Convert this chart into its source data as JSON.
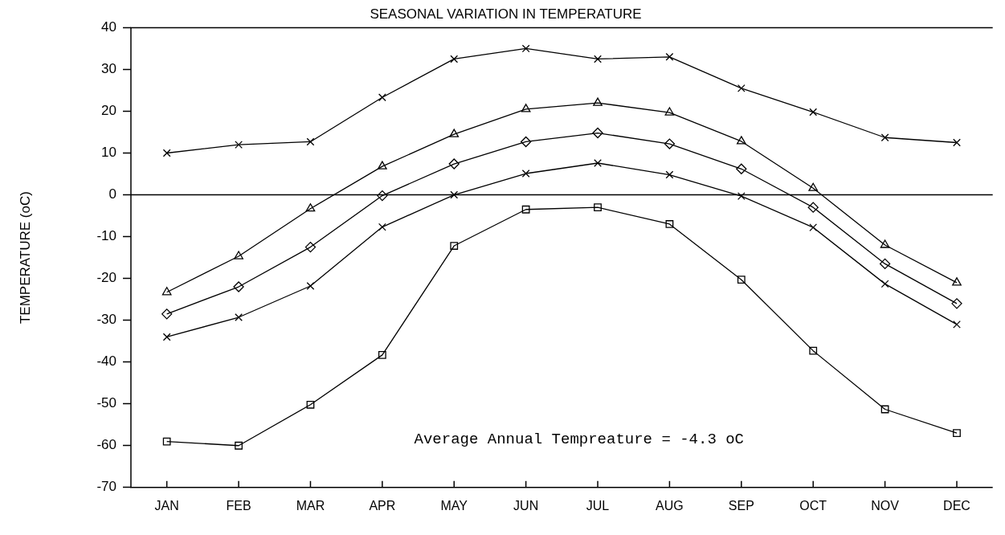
{
  "chart_data": {
    "type": "line",
    "title": "SEASONAL VARIATION IN TEMPERATURE",
    "ylabel": "TEMPERATURE (oC)",
    "categories": [
      "JAN",
      "FEB",
      "MAR",
      "APR",
      "MAY",
      "JUN",
      "JUL",
      "AUG",
      "SEP",
      "OCT",
      "NOV",
      "DEC"
    ],
    "series": [
      {
        "color": "#000000",
        "marker": "cross",
        "values": [
          10,
          12,
          12.7,
          23.3,
          32.5,
          35,
          32.5,
          33,
          25.5,
          19.8,
          13.7,
          12.5
        ]
      },
      {
        "color": "#000000",
        "marker": "triangle",
        "values": [
          -23.3,
          -14.7,
          -3.3,
          6.8,
          14.5,
          20.5,
          22,
          19.7,
          12.8,
          1.6,
          -12,
          -21
        ]
      },
      {
        "color": "#000000",
        "marker": "diamond",
        "values": [
          -28.5,
          -22,
          -12.5,
          -0.2,
          7.4,
          12.7,
          14.8,
          12.2,
          6.2,
          -3,
          -16.5,
          -26
        ]
      },
      {
        "color": "#000000",
        "marker": "cross",
        "values": [
          -34,
          -29.3,
          -21.8,
          -7.7,
          0,
          5.1,
          7.6,
          4.8,
          -0.3,
          -7.8,
          -21.3,
          -31
        ]
      },
      {
        "color": "#000000",
        "marker": "square",
        "values": [
          -59,
          -60,
          -50.2,
          -38.3,
          -12.2,
          -3.5,
          -3,
          -7,
          -20.3,
          -37.3,
          -51.3,
          -57
        ]
      }
    ],
    "ylim": [
      -70,
      40
    ],
    "yticks": [
      -70,
      -60,
      -50,
      -40,
      -30,
      -20,
      -10,
      0,
      10,
      20,
      30,
      40
    ],
    "ref_lines": [
      {
        "axis": "y",
        "value": 0,
        "color": "#000000"
      }
    ],
    "annotations": [
      "Average Annual Tempreature = -4.3 oC"
    ],
    "grid": false,
    "legend": false,
    "line_style": "solid"
  }
}
